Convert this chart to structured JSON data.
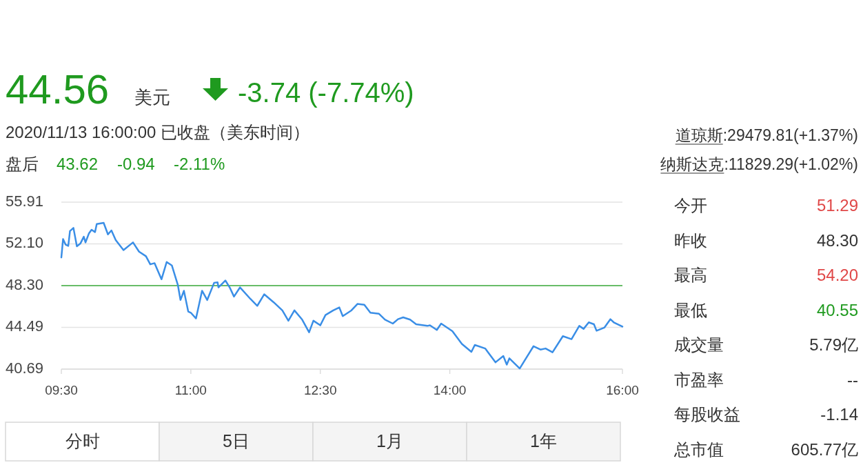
{
  "chart_data": [
    {
      "type": "line",
      "x": [
        9.5,
        9.52,
        9.55,
        9.58,
        9.6,
        9.64,
        9.68,
        9.72,
        9.76,
        9.78,
        9.82,
        9.85,
        9.89,
        9.91,
        9.99,
        10.04,
        10.08,
        10.13,
        10.22,
        10.33,
        10.4,
        10.48,
        10.53,
        10.58,
        10.66,
        10.72,
        10.78,
        10.85,
        10.88,
        10.92,
        10.97,
        11.0,
        11.06,
        11.13,
        11.19,
        11.27,
        11.31,
        11.32,
        11.4,
        11.45,
        11.5,
        11.57,
        11.69,
        11.77,
        11.85,
        11.96,
        12.06,
        12.13,
        12.2,
        12.29,
        12.37,
        12.42,
        12.5,
        12.56,
        12.65,
        12.72,
        12.76,
        12.86,
        12.93,
        13.01,
        13.08,
        13.18,
        13.25,
        13.34,
        13.4,
        13.46,
        13.54,
        13.61,
        13.74,
        13.77,
        13.85,
        13.9,
        14.03,
        14.14,
        14.25,
        14.29,
        14.41,
        14.53,
        14.62,
        14.66,
        14.69,
        14.81,
        14.97,
        15.05,
        15.11,
        15.19,
        15.31,
        15.41,
        15.5,
        15.55,
        15.61,
        15.67,
        15.7,
        15.79,
        15.86,
        15.9,
        16.0
      ],
      "series": [
        {
          "color": "#3a8ee6",
          "values": [
            50.87,
            52.55,
            52.03,
            51.92,
            53.28,
            53.56,
            51.88,
            52.13,
            52.76,
            52.24,
            53.07,
            53.39,
            53.18,
            53.91,
            54.02,
            52.97,
            53.33,
            52.45,
            51.54,
            52.24,
            51.4,
            50.98,
            50.24,
            50.35,
            48.88,
            50.45,
            50.14,
            48.35,
            46.99,
            47.83,
            45.94,
            45.83,
            45.31,
            47.83,
            46.99,
            48.56,
            48.6,
            48.14,
            48.77,
            48.14,
            47.3,
            48.14,
            47.09,
            46.46,
            47.51,
            46.78,
            46.04,
            45.1,
            46.04,
            45.2,
            44.05,
            45.1,
            44.68,
            45.62,
            46.04,
            46.31,
            45.52,
            46.04,
            46.63,
            46.56,
            45.83,
            45.73,
            45.2,
            44.84,
            45.24,
            45.41,
            45.2,
            44.78,
            44.63,
            44.68,
            44.26,
            44.84,
            44.15,
            42.99,
            42.26,
            42.89,
            42.57,
            41.31,
            41.88,
            41.1,
            41.67,
            40.75,
            42.78,
            42.47,
            42.57,
            42.22,
            43.69,
            43.42,
            44.63,
            44.36,
            44.95,
            44.78,
            44.19,
            44.47,
            45.24,
            44.95,
            44.56
          ]
        }
      ],
      "xlim": [
        9.5,
        16
      ],
      "xticks": [
        {
          "value": 9.5,
          "label": "09:30"
        },
        {
          "value": 11,
          "label": "11:00"
        },
        {
          "value": 12.5,
          "label": "12:30"
        },
        {
          "value": 14,
          "label": "14:00"
        },
        {
          "value": 16,
          "label": "16:00"
        }
      ],
      "ylim": [
        40.69,
        55.91
      ],
      "yticks": [
        40.69,
        44.49,
        {
          "value": 48.3,
          "label": "48.30"
        },
        {
          "value": 52.1,
          "label": "52.10"
        },
        55.91
      ],
      "ref_lines": [
        {
          "axis": "y",
          "value": 48.3,
          "color": "#3cae3c"
        }
      ],
      "grid": "y"
    },
    {
      "type": "other",
      "annotations": [
        "44.56",
        "美元",
        "-3.74 (-7.74%)",
        "2020/11/13 16:00:00  已收盘（美东时间）",
        "盘后",
        "43.62",
        "-0.94",
        "-2.11%",
        "道琼斯",
        ":29479.81(+1.37%)",
        "纳斯达克",
        ":11829.29(+1.02%)",
        "今开",
        "51.29",
        "昨收",
        "48.30",
        "最高",
        "54.20",
        "最低",
        "40.55",
        "成交量",
        "5.79亿",
        "市盈率",
        "--",
        "每股收益",
        "-1.14",
        "总市值",
        "605.77亿",
        "分时",
        "5日",
        "1月",
        "1年"
      ]
    }
  ]
}
